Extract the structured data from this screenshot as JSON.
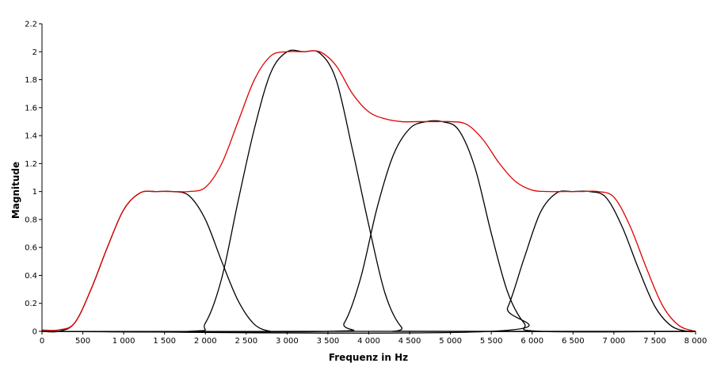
{
  "chart_data": {
    "type": "line",
    "title": "",
    "xlabel": "Frequenz in Hz",
    "ylabel": "Magnitude",
    "xlim": [
      0,
      8000
    ],
    "ylim": [
      0,
      2.2
    ],
    "x_ticks": [
      0,
      500,
      1000,
      1500,
      2000,
      2500,
      3000,
      3500,
      4000,
      4500,
      5000,
      5500,
      6000,
      6500,
      7000,
      7500,
      8000
    ],
    "x_tick_labels": [
      "0",
      "500",
      "1 000",
      "1 500",
      "2 000",
      "2 500",
      "3 000",
      "3 500",
      "4 000",
      "4 500",
      "5 000",
      "5 500",
      "6 000",
      "6 500",
      "7 000",
      "7 500",
      "8 000"
    ],
    "y_ticks": [
      0,
      0.2,
      0.4,
      0.6,
      0.8,
      1,
      1.2,
      1.4,
      1.6,
      1.8,
      2,
      2.2
    ],
    "y_tick_labels": [
      "0",
      "0.2",
      "0.4",
      "0.6",
      "0.8",
      "1",
      "1.2",
      "1.4",
      "1.6",
      "1.8",
      "2",
      "2.2"
    ],
    "grid": false,
    "legend": "none",
    "series": [
      {
        "color": "#000000",
        "x": [
          0,
          200,
          400,
          600,
          800,
          1000,
          1200,
          1400,
          1600,
          1800,
          2000,
          2200,
          2400,
          2600,
          2800,
          3000,
          8000
        ],
        "y": [
          0,
          0,
          0.06,
          0.3,
          0.6,
          0.87,
          0.99,
          1.0,
          1.0,
          0.97,
          0.8,
          0.5,
          0.22,
          0.05,
          0,
          0,
          0
        ]
      },
      {
        "color": "#000000",
        "x": [
          0,
          1800,
          2000,
          2200,
          2400,
          2600,
          2800,
          3000,
          3200,
          3400,
          3600,
          3800,
          4000,
          4200,
          4400,
          4600,
          8000
        ],
        "y": [
          0,
          0,
          0.06,
          0.38,
          0.93,
          1.45,
          1.85,
          2.0,
          2.0,
          1.99,
          1.8,
          1.3,
          0.76,
          0.27,
          0.03,
          0,
          0
        ]
      },
      {
        "color": "#000000",
        "x": [
          0,
          3500,
          3700,
          3900,
          4100,
          4300,
          4500,
          4700,
          4900,
          5100,
          5300,
          5500,
          5700,
          5900,
          6100,
          8000
        ],
        "y": [
          0,
          0,
          0.06,
          0.38,
          0.88,
          1.26,
          1.45,
          1.5,
          1.5,
          1.44,
          1.17,
          0.7,
          0.28,
          0.06,
          0,
          0
        ]
      },
      {
        "color": "#000000",
        "x": [
          0,
          5500,
          5700,
          5900,
          6100,
          6300,
          6500,
          6700,
          6900,
          7100,
          7300,
          7500,
          7700,
          7900,
          8000
        ],
        "y": [
          0,
          0,
          0.17,
          0.52,
          0.85,
          0.99,
          1.0,
          1.0,
          0.96,
          0.75,
          0.45,
          0.18,
          0.04,
          0,
          0
        ]
      },
      {
        "color": "#e00000",
        "x": [
          0,
          200,
          400,
          600,
          800,
          1000,
          1200,
          1400,
          1600,
          1800,
          2000,
          2200,
          2400,
          2600,
          2800,
          3000,
          3200,
          3400,
          3600,
          3800,
          4000,
          4200,
          4400,
          4600,
          4800,
          5000,
          5200,
          5400,
          5600,
          5800,
          6000,
          6200,
          6400,
          6600,
          6800,
          7000,
          7200,
          7400,
          7600,
          7800,
          8000
        ],
        "y": [
          0.01,
          0.01,
          0.06,
          0.3,
          0.6,
          0.87,
          0.99,
          1.0,
          1.0,
          1.0,
          1.03,
          1.2,
          1.5,
          1.8,
          1.97,
          2.0,
          2.0,
          2.0,
          1.9,
          1.7,
          1.57,
          1.52,
          1.5,
          1.5,
          1.5,
          1.5,
          1.48,
          1.37,
          1.2,
          1.07,
          1.01,
          1.0,
          1.0,
          1.0,
          1.0,
          0.96,
          0.75,
          0.45,
          0.18,
          0.04,
          0
        ]
      }
    ]
  }
}
